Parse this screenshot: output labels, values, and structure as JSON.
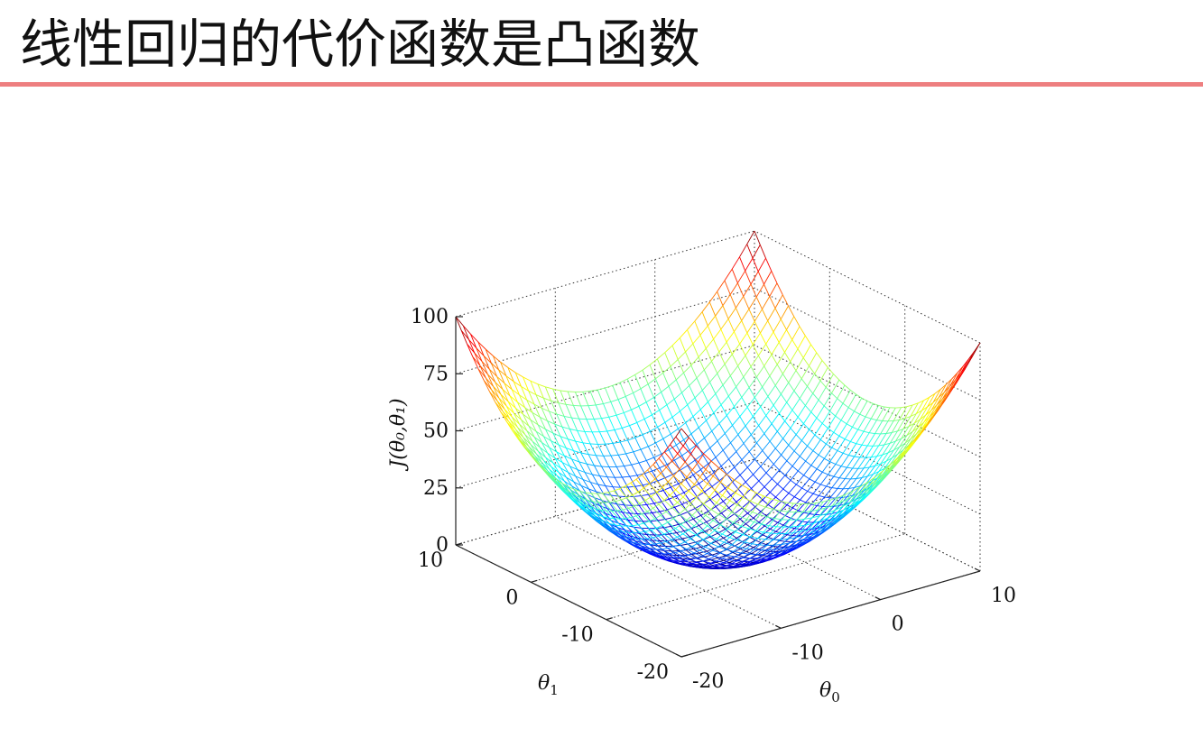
{
  "slide": {
    "title": "线性回归的代价函数是凸函数",
    "accent_color": "#ee7f80"
  },
  "chart_data": {
    "type": "surface",
    "function": "J(theta0, theta1) = ((theta0 + 5)^2 + (theta1 + 5)^2) / 4.5",
    "x": {
      "label": "θ",
      "sub": "0",
      "range": [
        -20,
        10
      ],
      "ticks": [
        -20,
        -10,
        0,
        10
      ]
    },
    "y": {
      "label": "θ",
      "sub": "1",
      "range": [
        -20,
        10
      ],
      "ticks": [
        -20,
        -10,
        0,
        10
      ]
    },
    "z": {
      "label": "J(θ₀,θ₁)",
      "range": [
        0,
        100
      ],
      "ticks": [
        0,
        25,
        50,
        75,
        100
      ]
    },
    "mesh_resolution": 41,
    "colormap": "jet",
    "grid": true
  }
}
